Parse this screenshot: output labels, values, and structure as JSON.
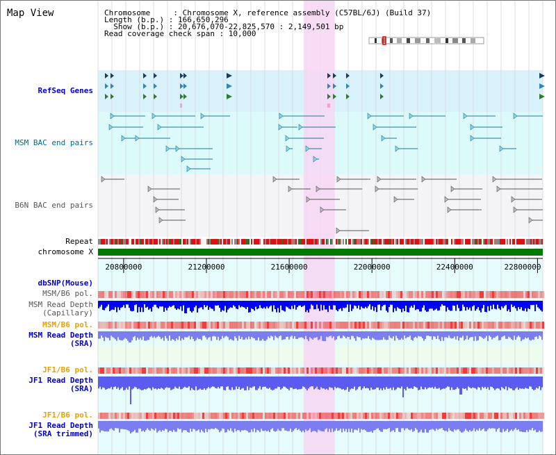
{
  "view_title": "Map View",
  "info": {
    "line1": "Chromosome     : Chromosome X, reference assembly (C57BL/6J) (Build 37)",
    "line2": "Length (b.p.) : 166,650,296",
    "line3": "  Show (b.p.) : 20,676,070-22,825,570 : 2,149,501 bp",
    "line4": "Read coverage check span : 10,000"
  },
  "tracks": {
    "refseq": "RefSeq Genes",
    "msm_bac": "MSM BAC end pairs",
    "b6n_bac": "B6N BAC end pairs",
    "repeat": "Repeat",
    "chromosome": "chromosome X",
    "dbsnp": "dbSNP(Mouse)",
    "msm_b6_pol_1": "MSM/B6 pol.",
    "msm_depth_cap": "MSM Read Depth\n(Capillary)",
    "msm_b6_pol_2": "MSM/B6 pol.",
    "msm_depth_sra": "MSM Read Depth\n(SRA)",
    "jf1_b6_pol_1": "JF1/B6 pol.",
    "jf1_depth_sra": "JF1 Read Depth\n(SRA)",
    "jf1_b6_pol_2": "JF1/B6 pol.",
    "jf1_depth_trim": "JF1 Read Depth\n(SRA trimmed)"
  },
  "axis": {
    "ticks": [
      {
        "value": 20800000,
        "label": "20800000"
      },
      {
        "value": 21200000,
        "label": "21200000"
      },
      {
        "value": 21600000,
        "label": "21600000"
      },
      {
        "value": 22000000,
        "label": "22000000"
      },
      {
        "value": 22400000,
        "label": "22400000"
      },
      {
        "value": 22800000,
        "label": "22800000"
      }
    ],
    "start": 20676070,
    "end": 22825570,
    "highlight_start": 21670000,
    "highlight_end": 21820000
  },
  "colors": {
    "highlight": "#f7d6f3",
    "refseq_bg": "#d9f1fb",
    "msm_bac_bg": "#ddfafa",
    "b6n_bac_bg": "#f4f4f7",
    "chromosome": "#007a00",
    "depth_capillary": "#0000ff",
    "depth_sra": "#7d7df2",
    "jf1_depth": "#5b5bf0",
    "pol_red": "#ee3333"
  }
}
